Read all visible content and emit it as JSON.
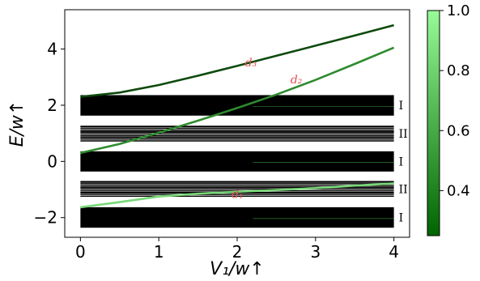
{
  "chart_data": {
    "type": "line",
    "xlabel": "V₁/w↑",
    "ylabel": "E/w↑",
    "xlim": [
      -0.2,
      4.2
    ],
    "ylim": [
      -2.7,
      5.4
    ],
    "xticks": [
      0,
      1,
      2,
      3,
      4
    ],
    "yticks": [
      -2,
      0,
      2,
      4
    ],
    "xtick_labels": [
      "0",
      "1",
      "2",
      "3",
      "4"
    ],
    "ytick_labels": [
      "−2",
      "0",
      "2",
      "4"
    ],
    "grid": false,
    "bands": [
      {
        "label": "I",
        "ymin": 1.63,
        "ymax": 2.36
      },
      {
        "label": "II",
        "ymin": 0.73,
        "ymax": 1.24
      },
      {
        "label": "I",
        "ymin": -0.36,
        "ymax": 0.36
      },
      {
        "label": "II",
        "ymin": -1.24,
        "ymax": -0.73
      },
      {
        "label": "I",
        "ymin": -2.36,
        "ymax": -1.63
      }
    ],
    "series": [
      {
        "name": "d₃",
        "x": [
          0,
          0.5,
          1.0,
          1.5,
          2.0,
          2.5,
          3.0,
          3.5,
          4.0
        ],
        "y": [
          2.3,
          2.45,
          2.72,
          3.05,
          3.4,
          3.76,
          4.12,
          4.48,
          4.85
        ],
        "color": "#0d4a0d"
      },
      {
        "name": "d₂",
        "x": [
          0,
          0.5,
          1.0,
          1.5,
          2.0,
          2.5,
          3.0,
          3.5,
          4.0
        ],
        "y": [
          0.3,
          0.62,
          1.02,
          1.45,
          1.9,
          2.38,
          2.9,
          3.47,
          4.05
        ],
        "color": "#2e8b2e"
      },
      {
        "name": "d₁",
        "x": [
          0,
          0.5,
          1.0,
          1.5,
          2.0,
          2.5,
          3.0,
          3.5,
          4.0
        ],
        "y": [
          -1.63,
          -1.45,
          -1.25,
          -1.15,
          -1.08,
          -1.02,
          -0.95,
          -0.86,
          -0.78
        ],
        "color": "#78d878"
      }
    ],
    "annotations": [
      {
        "text": "d₃",
        "x": 2.1,
        "y": 3.38
      },
      {
        "text": "d₂",
        "x": 2.68,
        "y": 2.78
      },
      {
        "text": "d₁",
        "x": 1.93,
        "y": -1.3
      }
    ],
    "colorbar": {
      "range": [
        0.25,
        1.0
      ],
      "ticks": [
        0.4,
        0.6,
        0.8,
        1.0
      ],
      "tick_labels": [
        "0.4",
        "0.6",
        "0.8",
        "1.0"
      ],
      "color_low": "#006400",
      "color_high": "#98fb98"
    }
  }
}
